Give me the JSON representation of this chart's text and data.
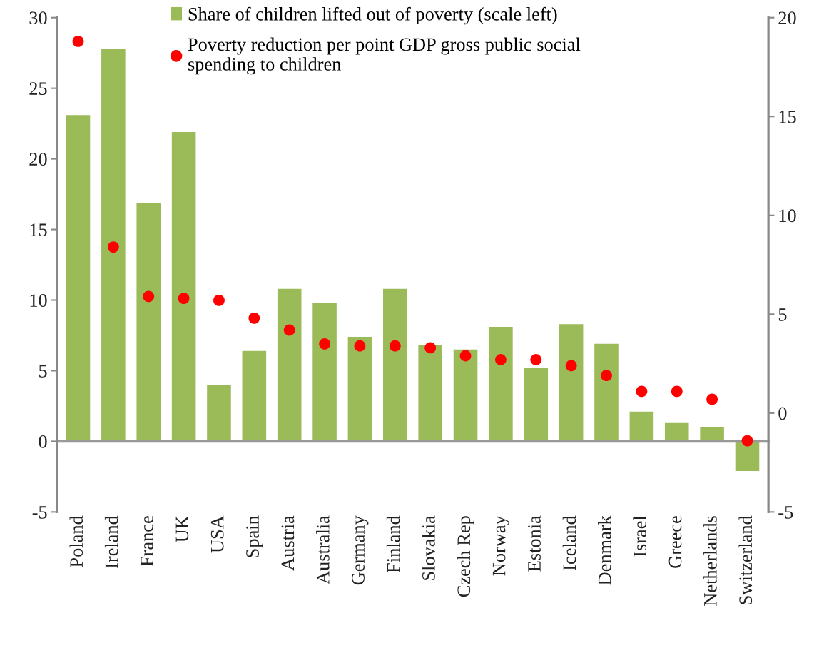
{
  "chart_data": {
    "type": "bar",
    "categories": [
      "Poland",
      "Ireland",
      "France",
      "UK",
      "USA",
      "Spain",
      "Austria",
      "Australia",
      "Germany",
      "Finland",
      "Slovakia",
      "Czech Rep",
      "Norway",
      "Estonia",
      "Iceland",
      "Denmark",
      "Israel",
      "Greece",
      "Netherlands",
      "Switzerland"
    ],
    "series": [
      {
        "name": "Share of children lifted out of poverty (scale left)",
        "color": "#9bbb59",
        "values": [
          23.1,
          27.8,
          16.9,
          21.9,
          4.0,
          6.4,
          10.8,
          9.8,
          7.4,
          10.8,
          6.8,
          6.5,
          8.1,
          5.2,
          8.3,
          6.9,
          2.1,
          1.3,
          1.0,
          -2.1
        ]
      },
      {
        "name": "Poverty reduction per point GDP gross public social\nspending to children",
        "type": "scatter",
        "axis": "y2",
        "color": "#ff0000",
        "values": [
          18.8,
          8.4,
          5.9,
          5.8,
          5.7,
          4.8,
          4.2,
          3.5,
          3.4,
          3.4,
          3.3,
          2.9,
          2.7,
          2.7,
          2.4,
          1.9,
          1.1,
          1.1,
          0.7,
          -1.4
        ]
      }
    ],
    "ylim": [
      -5,
      30
    ],
    "yticks": [
      -5,
      0,
      5,
      10,
      15,
      20,
      25,
      30
    ],
    "y2lim": [
      -5,
      20
    ],
    "y2ticks": [
      -5,
      0,
      5,
      10,
      15,
      20
    ],
    "marker": "circle",
    "legend": "top"
  }
}
